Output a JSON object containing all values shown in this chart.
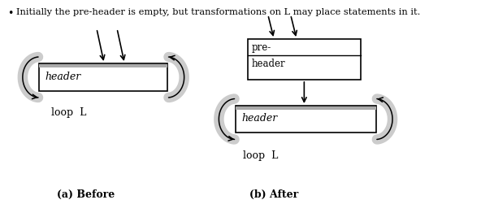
{
  "title_text": "Initially the pre-header is empty, but transformations on L may place statements in it.",
  "bullet": "•",
  "before_label": "(a) Before",
  "after_label": "(b) After",
  "loop_l": "loop  L",
  "header_text": "header",
  "box_color": "#ffffff",
  "box_edge_color": "#000000",
  "arrow_color": "#cccccc",
  "text_color": "#000000",
  "bg_color": "#ffffff",
  "gray_bar_color": "#aaaaaa",
  "loop_arrow_color": "#cccccc"
}
